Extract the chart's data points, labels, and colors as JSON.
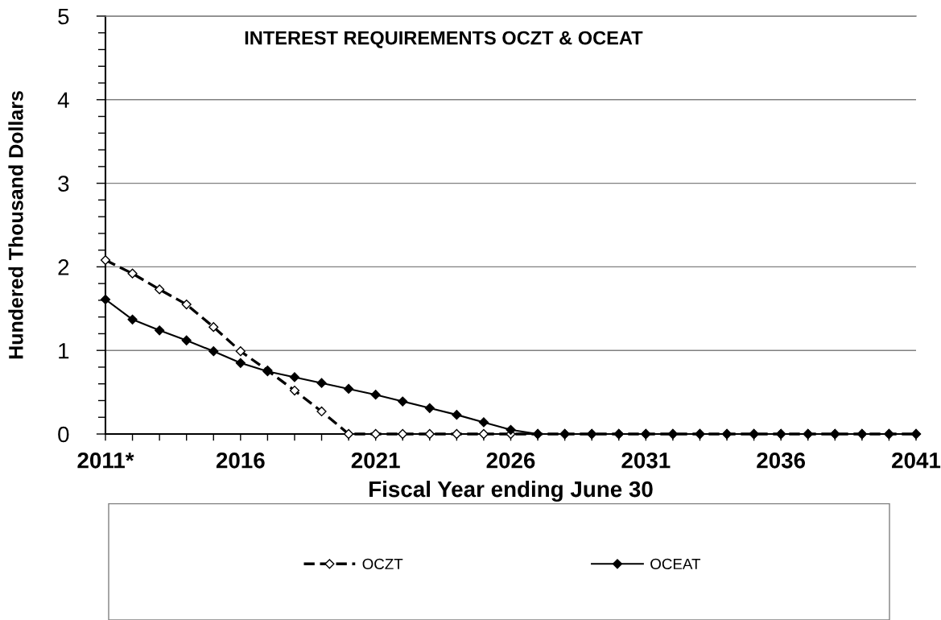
{
  "chart_data": {
    "type": "line",
    "title": "INTEREST REQUIREMENTS OCZT & OCEAT",
    "xlabel": "Fiscal Year ending June 30",
    "ylabel": "Hundered Thousand Dollars",
    "categories": [
      "2011*",
      null,
      null,
      null,
      null,
      "2016",
      null,
      null,
      null,
      null,
      "2021",
      null,
      null,
      null,
      null,
      "2026",
      null,
      null,
      null,
      null,
      "2031",
      null,
      null,
      null,
      null,
      "2036",
      null,
      null,
      null,
      null,
      "2041"
    ],
    "series": [
      {
        "name": "OCZT",
        "color": "#000000",
        "line_style": "dashed",
        "marker": "diamond",
        "values": [
          2.08,
          1.92,
          1.73,
          1.55,
          1.28,
          0.99,
          0.76,
          0.52,
          0.27,
          0,
          0,
          0,
          0,
          0,
          0,
          0,
          0,
          0,
          0,
          0,
          0,
          0,
          0,
          0,
          0,
          0,
          0,
          0,
          0,
          0,
          0
        ]
      },
      {
        "name": "OCEAT",
        "color": "#000000",
        "line_style": "solid",
        "marker": "diamond",
        "values": [
          1.61,
          1.37,
          1.24,
          1.12,
          0.99,
          0.85,
          0.75,
          0.68,
          0.61,
          0.54,
          0.47,
          0.39,
          0.31,
          0.23,
          0.14,
          0.05,
          0,
          0,
          0,
          0,
          0,
          0,
          0,
          0,
          0,
          0,
          0,
          0,
          0,
          0,
          0
        ]
      }
    ],
    "ylim": [
      0,
      5
    ],
    "yticks": [
      0,
      {
        "value": 0.2,
        "label": null
      },
      {
        "value": 0.4,
        "label": null
      },
      {
        "value": 0.6,
        "label": null
      },
      {
        "value": 0.8,
        "label": null
      },
      1,
      {
        "value": 1.2,
        "label": null
      },
      {
        "value": 1.4,
        "label": null
      },
      {
        "value": 1.6,
        "label": null
      },
      {
        "value": 1.8,
        "label": null
      },
      2,
      {
        "value": 2.2,
        "label": null
      },
      {
        "value": 2.4,
        "label": null
      },
      {
        "value": 2.6,
        "label": null
      },
      {
        "value": 2.8,
        "label": null
      },
      3,
      {
        "value": 3.2,
        "label": null
      },
      {
        "value": 3.4,
        "label": null
      },
      {
        "value": 3.6,
        "label": null
      },
      {
        "value": 3.8,
        "label": null
      },
      4,
      {
        "value": 4.2,
        "label": null
      },
      {
        "value": 4.4,
        "label": null
      },
      {
        "value": 4.6,
        "label": null
      },
      {
        "value": 4.8,
        "label": null
      },
      5
    ],
    "grid": "y",
    "legend": "bottom"
  }
}
